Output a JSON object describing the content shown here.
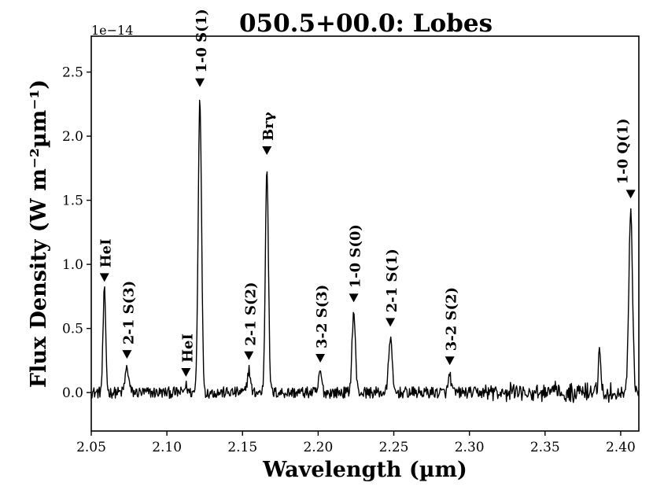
{
  "chart_data": {
    "type": "line",
    "title": "050.5+00.0: Lobes",
    "xlabel": "Wavelength (µm)",
    "ylabel": "Flux Density (W m⁻²µm⁻¹)",
    "y_offset_text": "1e−14",
    "xlim": [
      2.05,
      2.412
    ],
    "ylim": [
      -0.3,
      2.78
    ],
    "y_scale_factor": 1e-14,
    "xticks": [
      2.05,
      2.1,
      2.15,
      2.2,
      2.25,
      2.3,
      2.35,
      2.4
    ],
    "xtick_labels": [
      "2.05",
      "2.10",
      "2.15",
      "2.20",
      "2.25",
      "2.30",
      "2.35",
      "2.40"
    ],
    "yticks": [
      0.0,
      0.5,
      1.0,
      1.5,
      2.0,
      2.5
    ],
    "ytick_labels": [
      "0.0",
      "0.5",
      "1.0",
      "1.5",
      "2.0",
      "2.5"
    ],
    "grid": false,
    "line_color": "#000000",
    "baseline_noise": 0.045,
    "peaks": [
      {
        "x": 2.0587,
        "y": 0.79,
        "width": 0.0009
      },
      {
        "x": 2.0736,
        "y": 0.19,
        "width": 0.0012
      },
      {
        "x": 2.1126,
        "y": 0.05,
        "width": 0.001
      },
      {
        "x": 2.1218,
        "y": 2.31,
        "width": 0.0011
      },
      {
        "x": 2.1542,
        "y": 0.18,
        "width": 0.001
      },
      {
        "x": 2.1661,
        "y": 1.78,
        "width": 0.001
      },
      {
        "x": 2.2014,
        "y": 0.16,
        "width": 0.001
      },
      {
        "x": 2.2235,
        "y": 0.63,
        "width": 0.0011
      },
      {
        "x": 2.2477,
        "y": 0.44,
        "width": 0.0011
      },
      {
        "x": 2.287,
        "y": 0.14,
        "width": 0.0009
      },
      {
        "x": 2.386,
        "y": 0.35,
        "width": 0.0008
      },
      {
        "x": 2.4066,
        "y": 1.44,
        "width": 0.0012
      }
    ],
    "annotations": [
      {
        "label": "HeI",
        "x": 2.0587,
        "y": 0.79
      },
      {
        "label": "2-1 S(3)",
        "x": 2.0736,
        "y": 0.19
      },
      {
        "label": "HeI",
        "x": 2.1126,
        "y": 0.05
      },
      {
        "label": "1-0 S(1)",
        "x": 2.1218,
        "y": 2.31
      },
      {
        "label": "2-1 S(2)",
        "x": 2.1542,
        "y": 0.18
      },
      {
        "label": "Brγ",
        "x": 2.1661,
        "y": 1.78
      },
      {
        "label": "3-2 S(3)",
        "x": 2.2014,
        "y": 0.16
      },
      {
        "label": "1-0 S(0)",
        "x": 2.2235,
        "y": 0.63
      },
      {
        "label": "2-1 S(1)",
        "x": 2.2477,
        "y": 0.44
      },
      {
        "label": "3-2 S(2)",
        "x": 2.287,
        "y": 0.14
      },
      {
        "label": "1-0 Q(1)",
        "x": 2.4066,
        "y": 1.44
      }
    ]
  }
}
